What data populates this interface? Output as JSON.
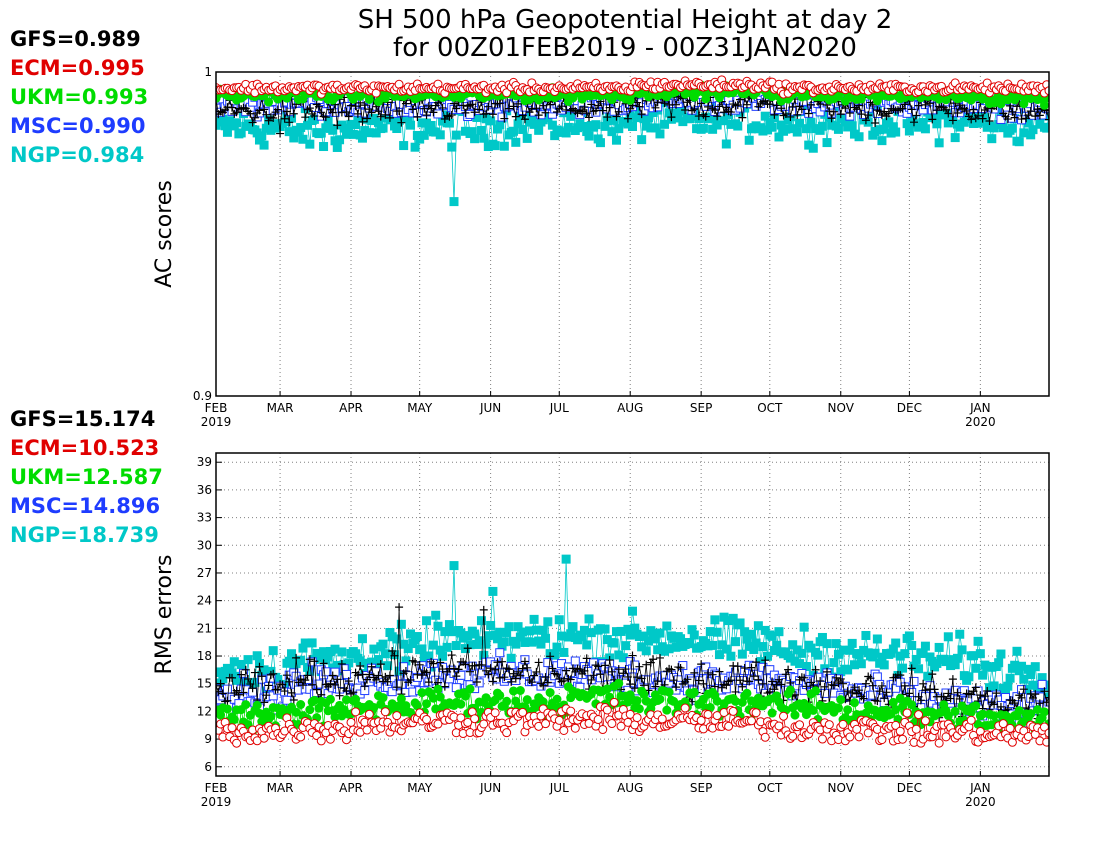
{
  "title_line1": "SH 500 hPa Geopotential Height at day 2",
  "title_line2": "for 00Z01FEB2019 - 00Z31JAN2020",
  "models": [
    {
      "name": "GFS",
      "color": "#000000",
      "marker": "plus"
    },
    {
      "name": "ECM",
      "color": "#e00000",
      "marker": "open-circle"
    },
    {
      "name": "UKM",
      "color": "#00dc00",
      "marker": "filled-circle"
    },
    {
      "name": "MSC",
      "color": "#1e3cff",
      "marker": "open-square"
    },
    {
      "name": "NGP",
      "color": "#00c8c8",
      "marker": "filled-square"
    }
  ],
  "month_labels": [
    "FEB",
    "MAR",
    "APR",
    "MAY",
    "JUN",
    "JUL",
    "AUG",
    "SEP",
    "OCT",
    "NOV",
    "DEC",
    "JAN"
  ],
  "year_labels": {
    "FEB": "2019",
    "JAN": "2020"
  },
  "chart_data": [
    {
      "type": "scatter",
      "panel": "top",
      "title": "SH 500 hPa Geopotential Height at day 2",
      "subtitle": "for 00Z01FEB2019 - 00Z31JAN2020",
      "ylabel": "AC scores",
      "xlabel": "",
      "x_range": [
        "2019-02-01",
        "2020-01-31"
      ],
      "ylim": [
        0.9,
        1.0
      ],
      "y_ticks": [
        "0.9",
        "1"
      ],
      "grid": "dotted vertical at month starts",
      "summary": [
        {
          "name": "GFS",
          "label": "GFS=0.989",
          "value": 0.989
        },
        {
          "name": "ECM",
          "label": "ECM=0.995",
          "value": 0.995
        },
        {
          "name": "UKM",
          "label": "UKM=0.993",
          "value": 0.993
        },
        {
          "name": "MSC",
          "label": "MSC=0.990",
          "value": 0.99
        },
        {
          "name": "NGP",
          "label": "NGP=0.984",
          "value": 0.984
        }
      ],
      "series": [
        {
          "name": "GFS",
          "monthly": [
            0.988,
            0.988,
            0.988,
            0.989,
            0.989,
            0.989,
            0.99,
            0.99,
            0.99,
            0.989,
            0.989,
            0.988
          ],
          "spread": 0.004,
          "min": [
            {
              "date": "2019-03-01",
              "value": 0.981
            }
          ]
        },
        {
          "name": "ECM",
          "monthly": [
            0.995,
            0.995,
            0.995,
            0.995,
            0.995,
            0.995,
            0.996,
            0.996,
            0.995,
            0.995,
            0.995,
            0.995
          ],
          "spread": 0.0012
        },
        {
          "name": "UKM",
          "monthly": [
            0.993,
            0.993,
            0.993,
            0.993,
            0.993,
            0.993,
            0.994,
            0.994,
            0.993,
            0.993,
            0.993,
            0.992
          ],
          "spread": 0.0015
        },
        {
          "name": "MSC",
          "monthly": [
            0.99,
            0.99,
            0.989,
            0.989,
            0.99,
            0.99,
            0.991,
            0.991,
            0.99,
            0.99,
            0.99,
            0.989
          ],
          "spread": 0.0025
        },
        {
          "name": "NGP",
          "monthly": [
            0.983,
            0.982,
            0.983,
            0.983,
            0.984,
            0.984,
            0.985,
            0.985,
            0.985,
            0.985,
            0.985,
            0.984
          ],
          "spread": 0.005,
          "outliers": [
            {
              "date": "2019-05-16",
              "value": 0.96
            },
            {
              "date": "2019-03-20",
              "value": 0.977
            },
            {
              "date": "2019-02-20",
              "value": 0.979
            }
          ]
        }
      ]
    },
    {
      "type": "scatter",
      "panel": "bottom",
      "ylabel": "RMS errors",
      "xlabel": "",
      "x_range": [
        "2019-02-01",
        "2020-01-31"
      ],
      "ylim": [
        5,
        40
      ],
      "y_ticks": [
        "6",
        "9",
        "12",
        "15",
        "18",
        "21",
        "24",
        "27",
        "30",
        "33",
        "36",
        "39"
      ],
      "grid": "dotted at month starts and y ticks",
      "summary": [
        {
          "name": "GFS",
          "label": "GFS=15.174",
          "value": 15.174
        },
        {
          "name": "ECM",
          "label": "ECM=10.523",
          "value": 10.523
        },
        {
          "name": "UKM",
          "label": "UKM=12.587",
          "value": 12.587
        },
        {
          "name": "MSC",
          "label": "MSC=14.896",
          "value": 14.896
        },
        {
          "name": "NGP",
          "label": "NGP=18.739",
          "value": 18.739
        }
      ],
      "series": [
        {
          "name": "GFS",
          "monthly": [
            14.5,
            15.5,
            16.0,
            16.5,
            16.0,
            16.0,
            15.5,
            15.5,
            15.0,
            14.5,
            13.5,
            13.0
          ],
          "spread": 2.2,
          "max": [
            {
              "date": "2019-04-22",
              "value": 23.3
            },
            {
              "date": "2019-05-29",
              "value": 23.0
            }
          ]
        },
        {
          "name": "ECM",
          "monthly": [
            9.8,
            10.2,
            10.8,
            11.0,
            11.0,
            11.2,
            11.0,
            10.8,
            10.2,
            10.0,
            9.8,
            9.5
          ],
          "spread": 1.5
        },
        {
          "name": "UKM",
          "monthly": [
            11.5,
            12.0,
            12.5,
            13.0,
            13.0,
            13.5,
            13.0,
            13.0,
            12.5,
            12.0,
            11.5,
            11.0
          ],
          "spread": 1.6
        },
        {
          "name": "MSC",
          "monthly": [
            14.0,
            15.0,
            15.5,
            16.0,
            16.0,
            16.0,
            15.5,
            15.5,
            15.0,
            14.0,
            13.0,
            12.5
          ],
          "spread": 2.0
        },
        {
          "name": "NGP",
          "monthly": [
            16.5,
            17.5,
            18.5,
            19.5,
            20.0,
            20.0,
            20.0,
            19.5,
            18.5,
            18.0,
            17.5,
            16.5
          ],
          "spread": 2.6,
          "outliers": [
            {
              "date": "2019-05-16",
              "value": 27.8
            },
            {
              "date": "2019-07-04",
              "value": 28.5
            },
            {
              "date": "2019-06-02",
              "value": 25.0
            }
          ]
        }
      ]
    }
  ]
}
